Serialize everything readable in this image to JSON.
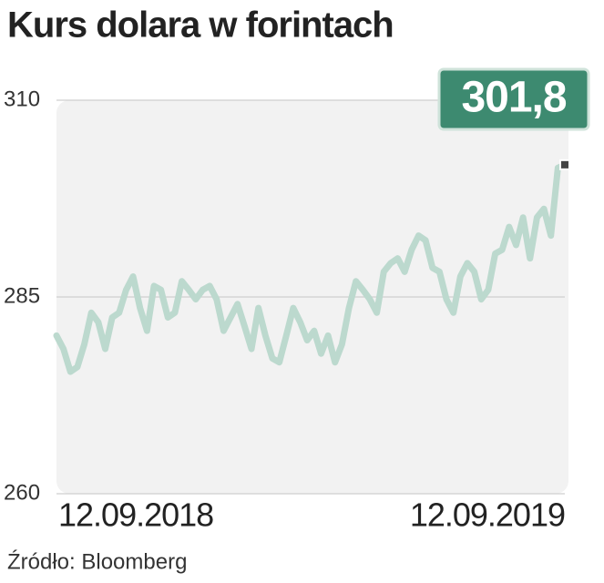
{
  "chart_data": {
    "type": "line",
    "title": "Kurs dolara w forintach",
    "source": "Źródło: Bloomberg",
    "categories": [
      "12.09.2018",
      null,
      null,
      null,
      null,
      null,
      null,
      null,
      null,
      null,
      null,
      null,
      null,
      null,
      null,
      null,
      null,
      null,
      null,
      null,
      null,
      null,
      null,
      null,
      null,
      null,
      null,
      null,
      null,
      null,
      null,
      null,
      null,
      null,
      null,
      null,
      null,
      null,
      null,
      null,
      null,
      null,
      null,
      null,
      null,
      null,
      null,
      null,
      null,
      null,
      null,
      null,
      null,
      null,
      null,
      null,
      null,
      null,
      null,
      null,
      null,
      null,
      null,
      null,
      null,
      null,
      null,
      null,
      null,
      null,
      null,
      null,
      null,
      "12.09.2019"
    ],
    "series": [
      {
        "color": "#bcd9ce",
        "values": [
          280.1,
          278.4,
          275.5,
          276.1,
          279.0,
          283.0,
          281.8,
          278.4,
          282.4,
          283.0,
          285.9,
          287.6,
          283.6,
          280.7,
          286.4,
          285.9,
          282.4,
          283.0,
          287.0,
          285.9,
          284.7,
          285.9,
          286.4,
          284.7,
          280.7,
          282.4,
          284.1,
          281.3,
          278.4,
          283.6,
          280.1,
          277.2,
          276.7,
          280.1,
          283.6,
          281.8,
          279.5,
          280.7,
          277.8,
          280.1,
          276.7,
          279.0,
          283.6,
          287.0,
          285.9,
          284.7,
          283.0,
          288.2,
          289.3,
          289.9,
          288.2,
          291.0,
          292.8,
          292.2,
          288.7,
          288.2,
          284.7,
          283.0,
          287.6,
          289.3,
          288.2,
          284.7,
          285.9,
          290.5,
          291.0,
          293.9,
          291.6,
          295.1,
          289.9,
          295.1,
          296.2,
          292.8,
          301.4,
          301.8
        ],
        "value_labels": [
          null,
          null,
          null,
          null,
          null,
          null,
          null,
          null,
          null,
          null,
          null,
          null,
          null,
          null,
          null,
          null,
          null,
          null,
          null,
          null,
          null,
          null,
          null,
          null,
          null,
          null,
          null,
          null,
          null,
          null,
          null,
          null,
          null,
          null,
          null,
          null,
          null,
          null,
          null,
          null,
          null,
          null,
          null,
          null,
          null,
          null,
          null,
          null,
          null,
          null,
          null,
          null,
          null,
          null,
          null,
          null,
          null,
          null,
          null,
          null,
          null,
          null,
          null,
          null,
          null,
          null,
          null,
          null,
          null,
          null,
          null,
          null,
          null,
          "301,8"
        ]
      }
    ],
    "ylim": [
      260,
      310
    ],
    "yticks": [
      260,
      285,
      310
    ],
    "grid": true,
    "label_color": "#3d8a70"
  }
}
